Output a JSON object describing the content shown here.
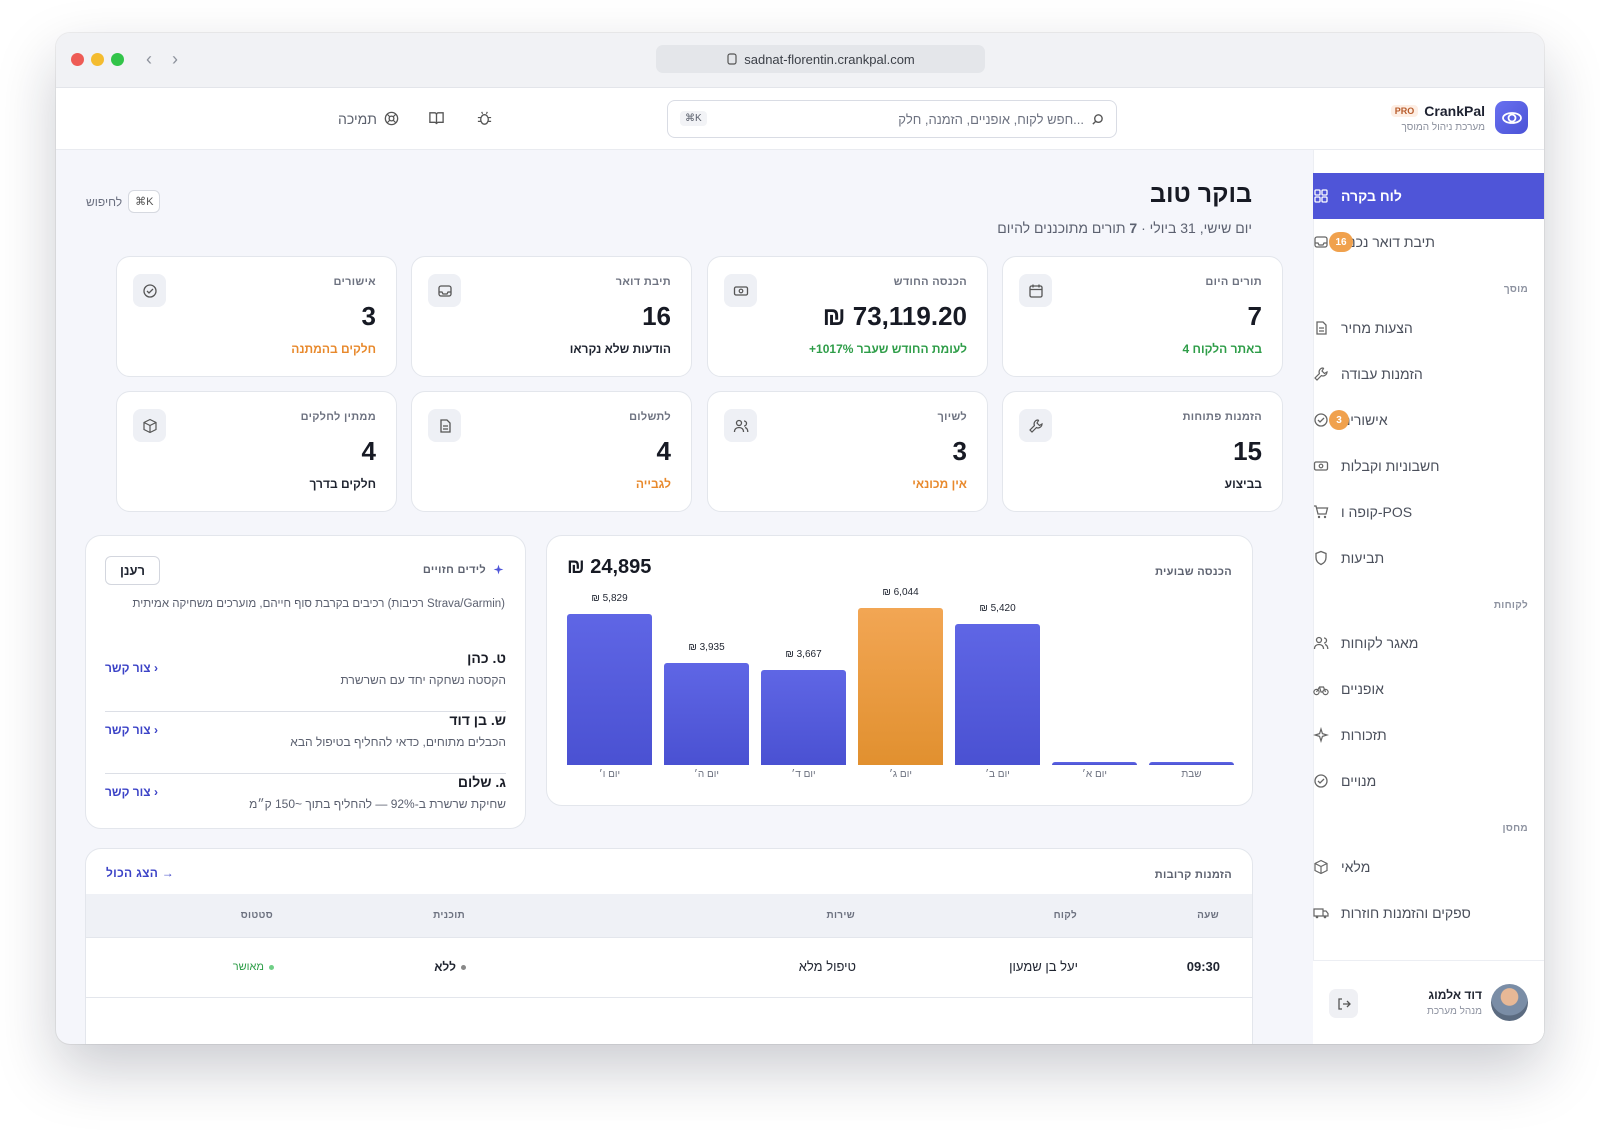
{
  "browser": {
    "url": "sadnat-florentin.crankpal.com"
  },
  "brand": {
    "name": "CrankPal",
    "badge": "PRO",
    "subtitle": "מערכת ניהול המוסך"
  },
  "search": {
    "placeholder": "חפש לקוח, אופניים, הזמנה, חלק...",
    "shortcut": "⌘K"
  },
  "toolbar": {
    "support": "תמיכה"
  },
  "sidebar": {
    "items": [
      {
        "label": "לוח בקרה",
        "icon": "grid-icon",
        "active": true
      },
      {
        "label": "תיבת דואר נכנס",
        "icon": "inbox-icon",
        "badge": "16"
      }
    ],
    "sections": [
      {
        "title": "מוסך",
        "items": [
          {
            "label": "הצעות מחיר",
            "icon": "document-icon"
          },
          {
            "label": "הזמנות עבודה",
            "icon": "wrench-icon"
          },
          {
            "label": "אישורים",
            "icon": "check-circle-icon",
            "badge": "3"
          },
          {
            "label": "חשבוניות וקבלות",
            "icon": "cash-icon"
          },
          {
            "label": "קופה ו-POS",
            "icon": "cart-icon"
          },
          {
            "label": "תביעות",
            "icon": "shield-icon"
          }
        ]
      },
      {
        "title": "לקוחות",
        "items": [
          {
            "label": "מאגר לקוחות",
            "icon": "users-icon"
          },
          {
            "label": "אופניים",
            "icon": "bike-icon"
          },
          {
            "label": "תזכורות",
            "icon": "sparkle-icon"
          },
          {
            "label": "מנויים",
            "icon": "check-circle-icon"
          }
        ]
      },
      {
        "title": "מחסן",
        "items": [
          {
            "label": "מלאי",
            "icon": "box-icon"
          },
          {
            "label": "ספקים והזמנות חוזרות",
            "icon": "truck-icon"
          }
        ]
      }
    ],
    "user": {
      "name": "דוד אלמוג",
      "role": "מנהל מערכת"
    }
  },
  "header": {
    "title": "בוקר טוב",
    "date": "יום שישי, 31 ביולי",
    "sep": " · ",
    "count": "7",
    "count_suffix": " תורים מתוכננים להיום",
    "search_hint": "לחיפוש",
    "search_key": "⌘K"
  },
  "cards": [
    {
      "title": "תורים היום",
      "value": "7",
      "sub": "4 באתר הלקוח",
      "sub_color": "#2e9d48",
      "icon": "calendar-icon"
    },
    {
      "title": "הכנסה החודש",
      "value": "₪ 73,119.20",
      "sub": "+1017% לעומת החודש שעבר",
      "sub_color": "#2e9d48",
      "icon": "cash-icon"
    },
    {
      "title": "תיבת דואר",
      "value": "16",
      "sub": "הודעות שלא נקראו",
      "sub_color": "#1f2430",
      "icon": "inbox-icon"
    },
    {
      "title": "אישורים",
      "value": "3",
      "sub": "חלקים בהמתנה",
      "sub_color": "#e8892c",
      "icon": "check-circle-icon"
    },
    {
      "title": "הזמנות פתוחות",
      "value": "15",
      "sub": "בביצוע",
      "sub_color": "#1f2430",
      "icon": "wrench-icon"
    },
    {
      "title": "לשיוך",
      "value": "3",
      "sub": "אין מכונאי",
      "sub_color": "#e8892c",
      "icon": "users-icon"
    },
    {
      "title": "לתשלום",
      "value": "4",
      "sub": "לגבייה",
      "sub_color": "#e8892c",
      "icon": "document-icon"
    },
    {
      "title": "ממתין לחלקים",
      "value": "4",
      "sub": "חלקים בדרך",
      "sub_color": "#1f2430",
      "icon": "box-icon"
    }
  ],
  "chart_data": {
    "type": "bar",
    "title": "הכנסה שבועית",
    "total": "₪ 24,895",
    "categories": [
      "יום ו׳",
      "יום ה׳",
      "יום ד׳",
      "יום ג׳",
      "יום ב׳",
      "יום א׳",
      "שבת"
    ],
    "values": [
      5829,
      3935,
      3667,
      6044,
      5420,
      0,
      0
    ],
    "labels": [
      "₪ 5,829",
      "₪ 3,935",
      "₪ 3,667",
      "₪ 6,044",
      "₪ 5,420",
      "",
      ""
    ],
    "highlight_index": 3,
    "colors": {
      "bar": "#535ada",
      "highlight": "#ec9a40"
    },
    "ylim": [
      0,
      6044
    ]
  },
  "leads": {
    "title": "לידים חזויים",
    "refresh": "רענן",
    "description": "רכיבים בקרבת סוף חייהם, מוערכים משחיקה אמיתית (רכיבות Strava/Garmin)",
    "contact": "צור קשר ›",
    "items": [
      {
        "name": "ט. כהן",
        "desc": "הקסטה נשחקה יחד עם השרשרת"
      },
      {
        "name": "ש. בן דוד",
        "desc": "הכבלים מתוחים, כדאי להחליף בטיפול הבא"
      },
      {
        "name": "ג. שלום",
        "desc": "שחיקת שרשרת ב-92% — להחליף בתוך ~150 ק״מ"
      }
    ]
  },
  "orders": {
    "title": "הזמנות קרובות",
    "view_all": "הצג הכול →",
    "columns": [
      "שעה",
      "לקוח",
      "שירות",
      "תוכנית",
      "סטטוס"
    ],
    "rows": [
      {
        "time": "09:30",
        "customer": "יעל בן שמעון",
        "service": "טיפול מלא",
        "plan": "ללא",
        "status": "מאושר"
      }
    ]
  }
}
